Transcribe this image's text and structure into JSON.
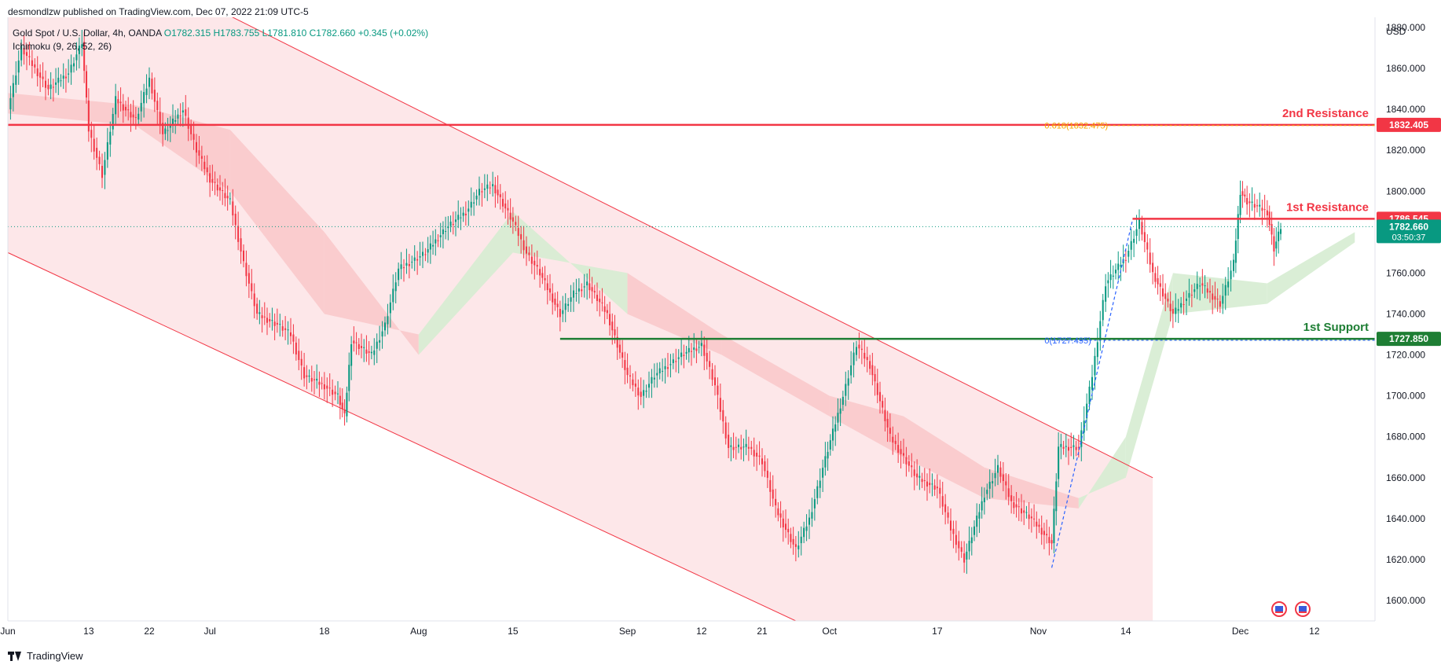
{
  "header": {
    "published": "desmondlzw published on TradingView.com, Dec 07, 2022 21:09 UTC-5",
    "symbol": "Gold Spot / U.S. Dollar, 4h, OANDA",
    "open": "O1782.315",
    "high": "H1783.755",
    "low": "L1781.810",
    "close": "C1782.660",
    "change": "+0.345 (+0.02%)",
    "indicator": "Ichimoku (9, 26, 52, 26)"
  },
  "footer": {
    "brand": "TradingView"
  },
  "chart_data": {
    "type": "candlestick",
    "currency": "USD",
    "y_ticks": [
      1600,
      1620,
      1640,
      1660,
      1680,
      1700,
      1720,
      1740,
      1760,
      1780,
      1800,
      1820,
      1840,
      1860,
      1880
    ],
    "y_tick_labels": [
      "1600.000",
      "1620.000",
      "1640.000",
      "1660.000",
      "1680.000",
      "1700.000",
      "1720.000",
      "1740.000",
      "1760.000",
      "1780.000",
      "1800.000",
      "1820.000",
      "1840.000",
      "1860.000",
      "1880.000"
    ],
    "x_ticks": [
      "Jun",
      "13",
      "22",
      "Jul",
      "18",
      "Aug",
      "15",
      "Sep",
      "12",
      "21",
      "Oct",
      "17",
      "Nov",
      "14",
      "Dec",
      "12"
    ],
    "x_tick_dates": [
      "2022-06-01",
      "2022-06-13",
      "2022-06-22",
      "2022-07-01",
      "2022-07-18",
      "2022-08-01",
      "2022-08-15",
      "2022-09-01",
      "2022-09-12",
      "2022-09-21",
      "2022-10-01",
      "2022-10-17",
      "2022-11-01",
      "2022-11-14",
      "2022-12-01",
      "2022-12-12"
    ],
    "ylim": [
      1590,
      1885
    ],
    "xlim": [
      "2022-06-01",
      "2022-12-21"
    ],
    "price_path": [
      [
        "2022-06-01",
        1840
      ],
      [
        "2022-06-03",
        1870
      ],
      [
        "2022-06-07",
        1850
      ],
      [
        "2022-06-10",
        1858
      ],
      [
        "2022-06-12",
        1873
      ],
      [
        "2022-06-13",
        1830
      ],
      [
        "2022-06-15",
        1808
      ],
      [
        "2022-06-17",
        1845
      ],
      [
        "2022-06-20",
        1835
      ],
      [
        "2022-06-22",
        1855
      ],
      [
        "2022-06-24",
        1828
      ],
      [
        "2022-06-27",
        1840
      ],
      [
        "2022-06-29",
        1820
      ],
      [
        "2022-07-01",
        1806
      ],
      [
        "2022-07-04",
        1795
      ],
      [
        "2022-07-06",
        1765
      ],
      [
        "2022-07-08",
        1740
      ],
      [
        "2022-07-11",
        1735
      ],
      [
        "2022-07-13",
        1730
      ],
      [
        "2022-07-15",
        1710
      ],
      [
        "2022-07-18",
        1705
      ],
      [
        "2022-07-20",
        1700
      ],
      [
        "2022-07-21",
        1690
      ],
      [
        "2022-07-22",
        1727
      ],
      [
        "2022-07-25",
        1720
      ],
      [
        "2022-07-27",
        1735
      ],
      [
        "2022-07-29",
        1762
      ],
      [
        "2022-08-02",
        1770
      ],
      [
        "2022-08-05",
        1782
      ],
      [
        "2022-08-08",
        1790
      ],
      [
        "2022-08-10",
        1800
      ],
      [
        "2022-08-12",
        1803
      ],
      [
        "2022-08-15",
        1785
      ],
      [
        "2022-08-17",
        1770
      ],
      [
        "2022-08-19",
        1760
      ],
      [
        "2022-08-22",
        1740
      ],
      [
        "2022-08-24",
        1750
      ],
      [
        "2022-08-26",
        1755
      ],
      [
        "2022-08-29",
        1740
      ],
      [
        "2022-09-01",
        1710
      ],
      [
        "2022-09-03",
        1700
      ],
      [
        "2022-09-05",
        1710
      ],
      [
        "2022-09-07",
        1715
      ],
      [
        "2022-09-09",
        1720
      ],
      [
        "2022-09-12",
        1725
      ],
      [
        "2022-09-14",
        1705
      ],
      [
        "2022-09-16",
        1675
      ],
      [
        "2022-09-19",
        1675
      ],
      [
        "2022-09-21",
        1668
      ],
      [
        "2022-09-23",
        1645
      ],
      [
        "2022-09-26",
        1625
      ],
      [
        "2022-09-28",
        1640
      ],
      [
        "2022-09-30",
        1665
      ],
      [
        "2022-10-03",
        1700
      ],
      [
        "2022-10-05",
        1725
      ],
      [
        "2022-10-07",
        1715
      ],
      [
        "2022-10-10",
        1680
      ],
      [
        "2022-10-12",
        1670
      ],
      [
        "2022-10-14",
        1660
      ],
      [
        "2022-10-17",
        1655
      ],
      [
        "2022-10-19",
        1635
      ],
      [
        "2022-10-21",
        1620
      ],
      [
        "2022-10-24",
        1652
      ],
      [
        "2022-10-26",
        1665
      ],
      [
        "2022-10-28",
        1648
      ],
      [
        "2022-10-31",
        1640
      ],
      [
        "2022-11-03",
        1628
      ],
      [
        "2022-11-04",
        1675
      ],
      [
        "2022-11-07",
        1675
      ],
      [
        "2022-11-09",
        1710
      ],
      [
        "2022-11-11",
        1755
      ],
      [
        "2022-11-14",
        1768
      ],
      [
        "2022-11-16",
        1785
      ],
      [
        "2022-11-18",
        1760
      ],
      [
        "2022-11-21",
        1740
      ],
      [
        "2022-11-23",
        1748
      ],
      [
        "2022-11-25",
        1755
      ],
      [
        "2022-11-28",
        1745
      ],
      [
        "2022-11-30",
        1765
      ],
      [
        "2022-12-01",
        1800
      ],
      [
        "2022-12-02",
        1795
      ],
      [
        "2022-12-05",
        1790
      ],
      [
        "2022-12-06",
        1772
      ],
      [
        "2022-12-07",
        1782.66
      ]
    ],
    "cloud": [
      [
        "2022-06-01",
        1848,
        1838
      ],
      [
        "2022-06-20",
        1842,
        1832
      ],
      [
        "2022-07-04",
        1830,
        1800
      ],
      [
        "2022-07-18",
        1780,
        1740
      ],
      [
        "2022-08-01",
        1720,
        1730
      ],
      [
        "2022-08-15",
        1770,
        1790
      ],
      [
        "2022-09-01",
        1760,
        1740
      ],
      [
        "2022-09-15",
        1730,
        1720
      ],
      [
        "2022-10-01",
        1700,
        1690
      ],
      [
        "2022-10-12",
        1690,
        1670
      ],
      [
        "2022-10-24",
        1665,
        1650
      ],
      [
        "2022-11-07",
        1650,
        1645
      ],
      [
        "2022-11-14",
        1660,
        1680
      ],
      [
        "2022-11-21",
        1740,
        1760
      ],
      [
        "2022-12-05",
        1745,
        1755
      ],
      [
        "2022-12-18",
        1775,
        1780
      ]
    ],
    "channel": {
      "upper": [
        [
          "2022-06-01",
          1940
        ],
        [
          "2022-11-18",
          1660
        ]
      ],
      "lower": [
        [
          "2022-06-01",
          1770
        ],
        [
          "2022-09-26",
          1590
        ]
      ]
    },
    "levels": [
      {
        "label": "2nd Resistance",
        "value": "1832.405",
        "price": 1832.405,
        "color": "#f23645"
      },
      {
        "label": "1st Resistance",
        "value": "1786.545",
        "price": 1786.545,
        "color": "#f23645"
      },
      {
        "label": "1st Support",
        "value": "1727.850",
        "price": 1727.85,
        "color": "#1e7e34"
      }
    ],
    "fib_labels": [
      {
        "label": "0.618(1832.475)",
        "price": 1832.475,
        "color": "#f7a600"
      },
      {
        "label": "0(1727.495)",
        "price": 1727.495,
        "color": "#2962ff"
      }
    ],
    "current_price": {
      "value": "1782.660",
      "countdown": "03:50:37",
      "price": 1782.66,
      "color": "#089981"
    },
    "colors": {
      "up": "#089981",
      "down": "#f23645",
      "channel_fill": "#fde7e9",
      "cloud_bull": "#d6ecd2",
      "cloud_bear": "#f9c9cb"
    }
  }
}
